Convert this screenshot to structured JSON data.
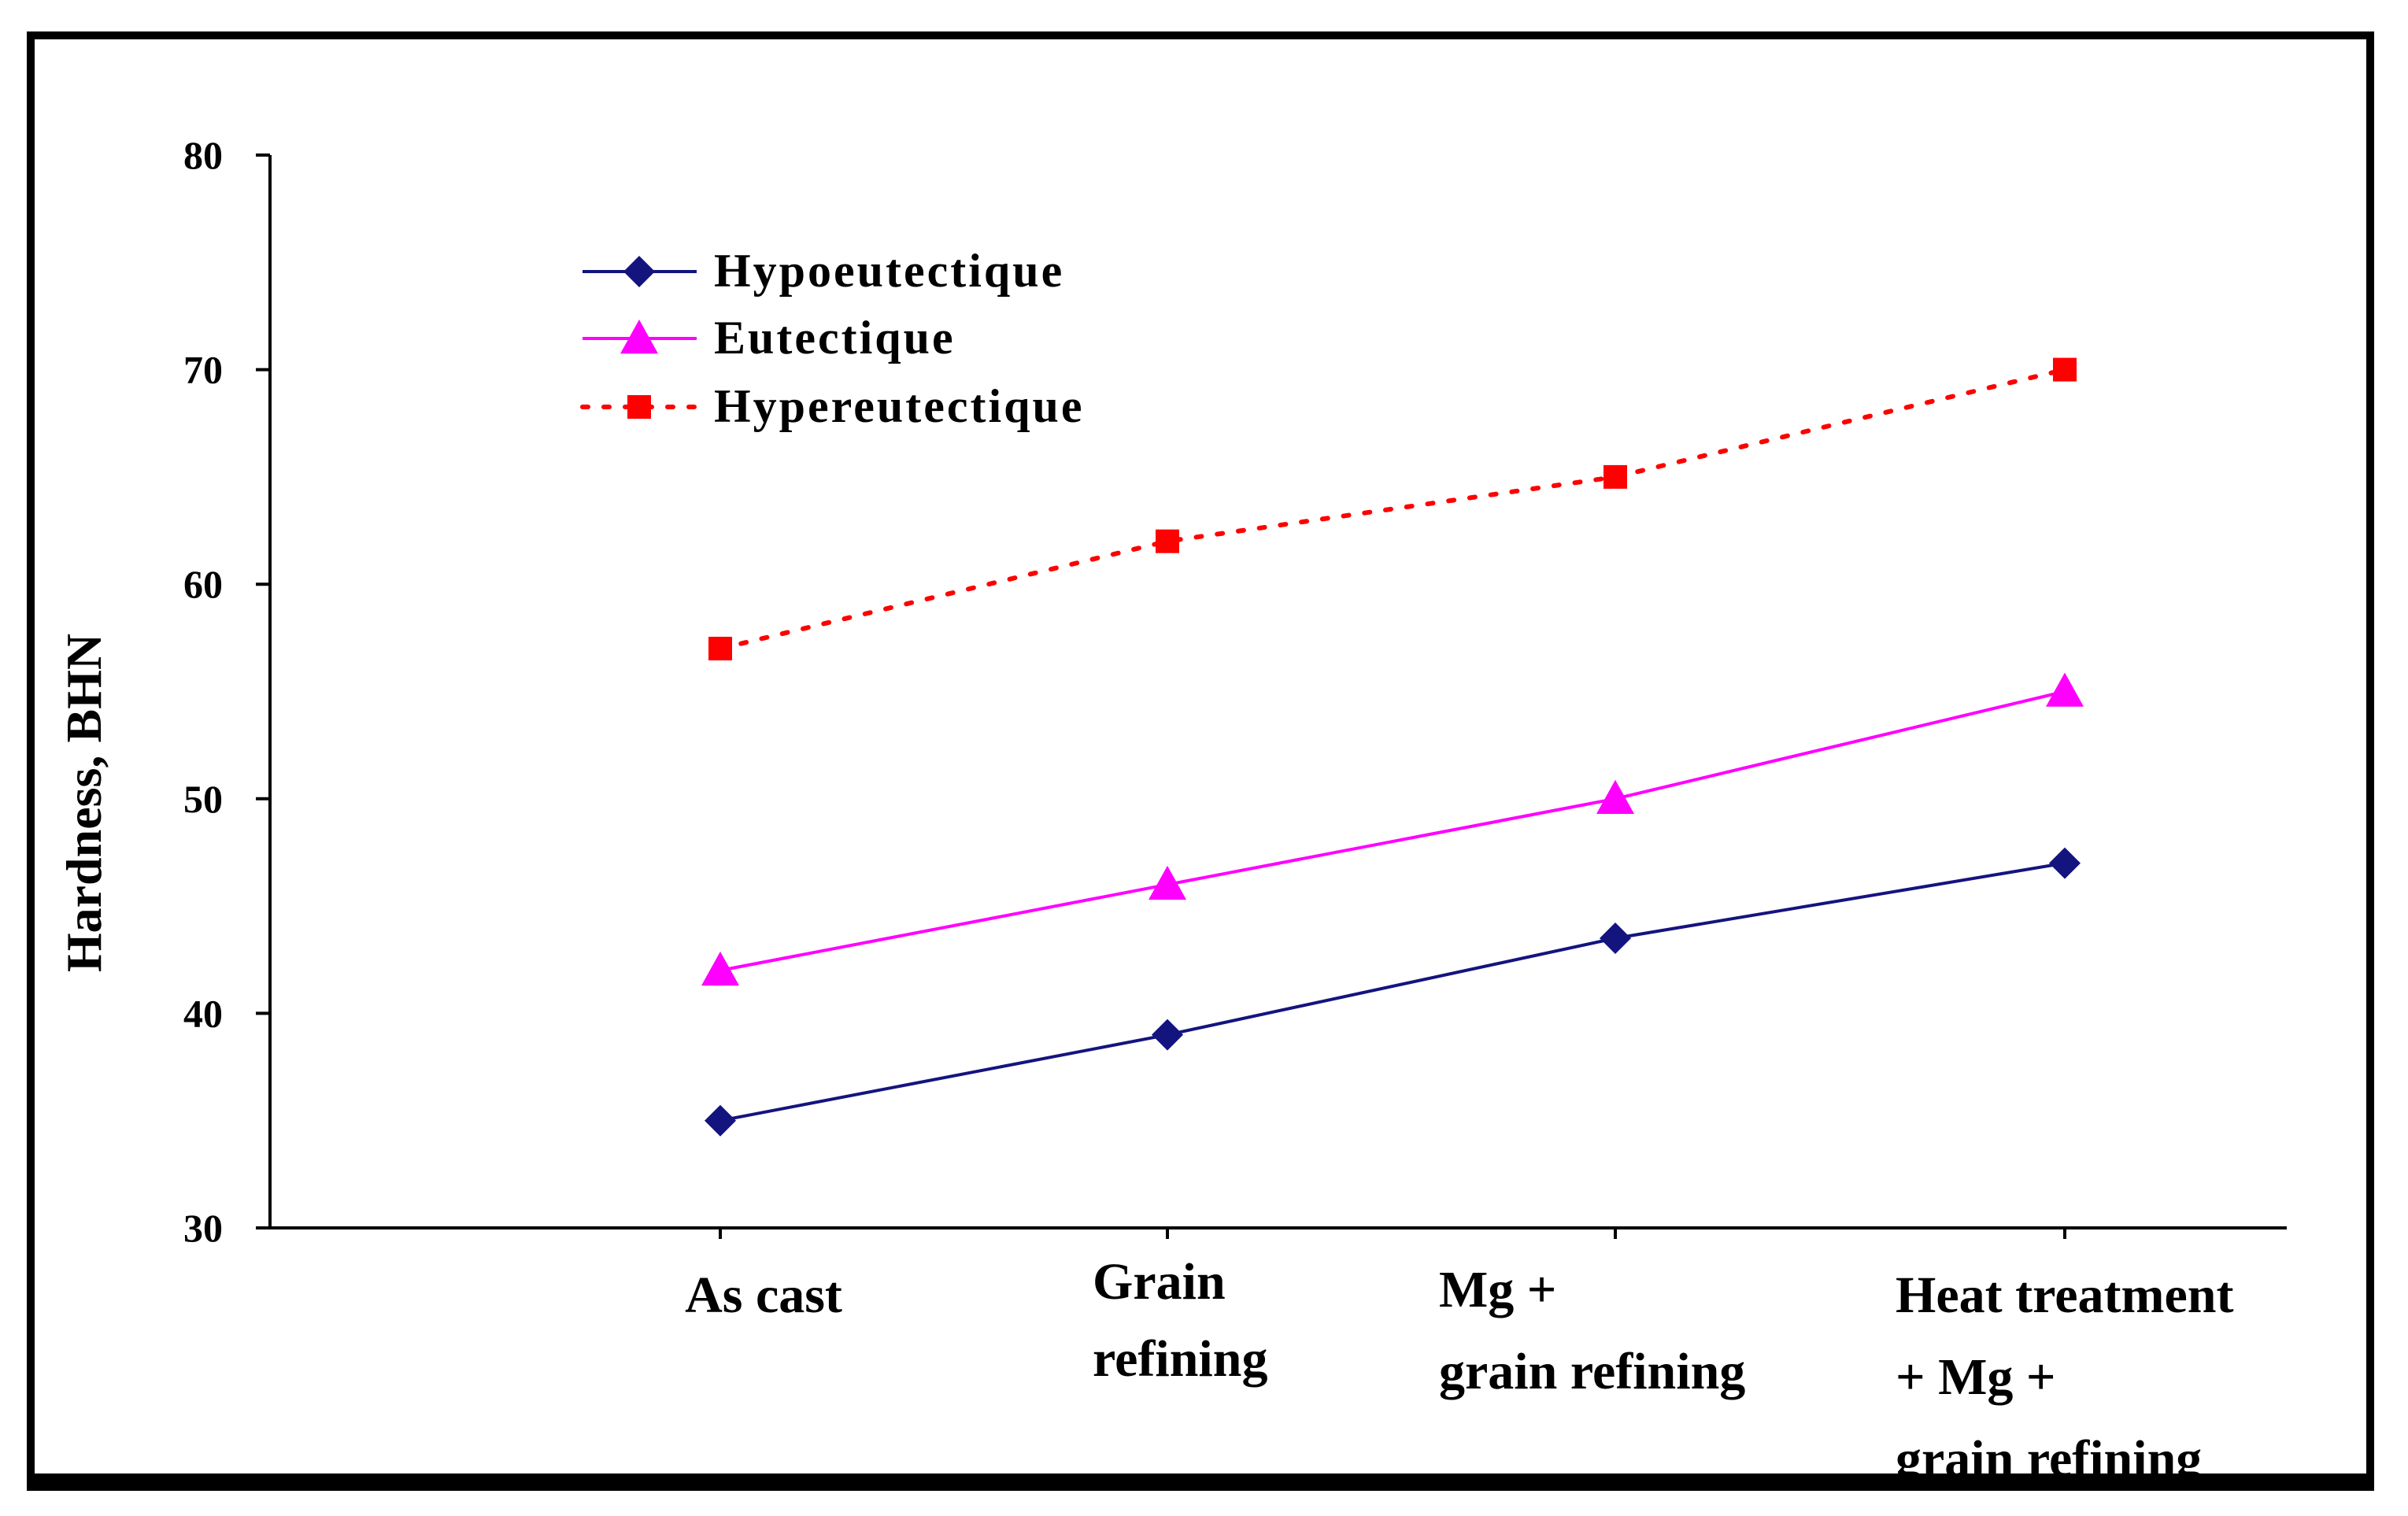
{
  "chart_data": {
    "type": "line",
    "title": "",
    "xlabel": "",
    "ylabel": "Hardness, BHN",
    "ylim": [
      30,
      80
    ],
    "yticks": [
      30,
      40,
      50,
      60,
      70,
      80
    ],
    "grid": false,
    "legend_position": "top-left",
    "categories": [
      [
        "As cast"
      ],
      [
        "Grain",
        "refining"
      ],
      [
        "Mg +",
        "grain refining"
      ],
      [
        "Heat treatment",
        "+ Mg +",
        "grain refining"
      ]
    ],
    "series": [
      {
        "name": "Hypoeutectique",
        "values": [
          35,
          39,
          43.5,
          47
        ],
        "color": "#14147f",
        "marker": "diamond",
        "line_style": "solid"
      },
      {
        "name": "Eutectique",
        "values": [
          42,
          46,
          50,
          55
        ],
        "color": "#ff00ff",
        "marker": "triangle",
        "line_style": "solid"
      },
      {
        "name": "Hypereutectique",
        "values": [
          57,
          62,
          65,
          70
        ],
        "color": "#ff0000",
        "marker": "square",
        "line_style": "dotted"
      }
    ]
  }
}
